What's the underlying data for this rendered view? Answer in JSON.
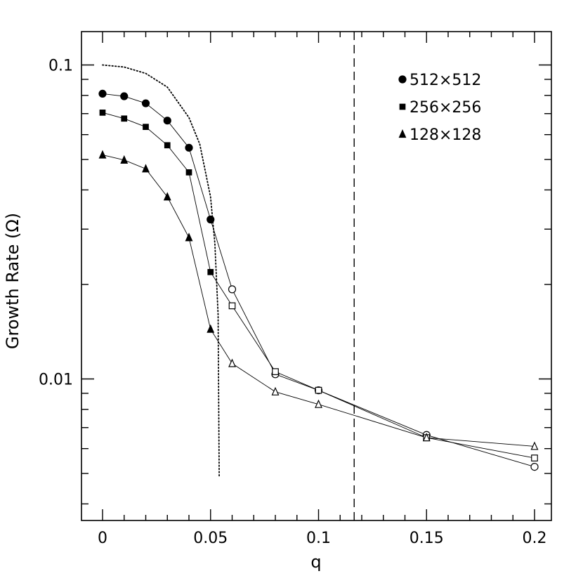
{
  "chart_data": {
    "type": "scatter",
    "title": "",
    "xlabel": "q",
    "ylabel": "Growth Rate (Ω)",
    "xlim": [
      -0.01,
      0.207
    ],
    "ylim": [
      0.0049,
      0.14
    ],
    "yscale": "log",
    "grid": false,
    "legend_position": "top-right",
    "x_ticks": [
      {
        "value": 0,
        "label": "0"
      },
      {
        "value": 0.05,
        "label": "0.05"
      },
      {
        "value": 0.1,
        "label": "0.1"
      },
      {
        "value": 0.15,
        "label": "0.15"
      },
      {
        "value": 0.2,
        "label": "0.2"
      }
    ],
    "y_ticks": [
      {
        "value": 0.1,
        "label": "0.1"
      },
      {
        "value": 0.01,
        "label": "0.01"
      }
    ],
    "series": [
      {
        "name": "512×512",
        "marker": "circle",
        "points": [
          {
            "x": 0,
            "y": 0.081,
            "filled": true
          },
          {
            "x": 0.01,
            "y": 0.0795,
            "filled": true
          },
          {
            "x": 0.02,
            "y": 0.0755,
            "filled": true
          },
          {
            "x": 0.03,
            "y": 0.0665,
            "filled": true
          },
          {
            "x": 0.04,
            "y": 0.0545,
            "filled": true
          },
          {
            "x": 0.05,
            "y": 0.0322,
            "filled": true
          },
          {
            "x": 0.06,
            "y": 0.0193,
            "filled": false
          },
          {
            "x": 0.08,
            "y": 0.01035,
            "filled": false
          },
          {
            "x": 0.1,
            "y": 0.0092,
            "filled": false
          },
          {
            "x": 0.15,
            "y": 0.00663,
            "filled": false
          },
          {
            "x": 0.2,
            "y": 0.00525,
            "filled": false
          }
        ]
      },
      {
        "name": "256×256",
        "marker": "square",
        "points": [
          {
            "x": 0,
            "y": 0.0705,
            "filled": true
          },
          {
            "x": 0.01,
            "y": 0.0675,
            "filled": true
          },
          {
            "x": 0.02,
            "y": 0.0635,
            "filled": true
          },
          {
            "x": 0.03,
            "y": 0.0555,
            "filled": true
          },
          {
            "x": 0.04,
            "y": 0.0455,
            "filled": true
          },
          {
            "x": 0.05,
            "y": 0.0219,
            "filled": true
          },
          {
            "x": 0.06,
            "y": 0.0171,
            "filled": false
          },
          {
            "x": 0.08,
            "y": 0.01055,
            "filled": false
          },
          {
            "x": 0.1,
            "y": 0.0092,
            "filled": false
          },
          {
            "x": 0.15,
            "y": 0.0065,
            "filled": false
          },
          {
            "x": 0.2,
            "y": 0.0056,
            "filled": false
          }
        ]
      },
      {
        "name": "128×128",
        "marker": "triangle",
        "points": [
          {
            "x": 0,
            "y": 0.0517,
            "filled": true
          },
          {
            "x": 0.01,
            "y": 0.0498,
            "filled": true
          },
          {
            "x": 0.02,
            "y": 0.0467,
            "filled": true
          },
          {
            "x": 0.03,
            "y": 0.038,
            "filled": true
          },
          {
            "x": 0.04,
            "y": 0.0282,
            "filled": true
          },
          {
            "x": 0.05,
            "y": 0.0144,
            "filled": true
          },
          {
            "x": 0.06,
            "y": 0.0112,
            "filled": false
          },
          {
            "x": 0.08,
            "y": 0.0091,
            "filled": false
          },
          {
            "x": 0.1,
            "y": 0.0083,
            "filled": false
          },
          {
            "x": 0.15,
            "y": 0.0065,
            "filled": false
          },
          {
            "x": 0.2,
            "y": 0.0061,
            "filled": false
          }
        ]
      }
    ],
    "reference_curves": [
      {
        "style": "dotted",
        "points": [
          {
            "x": 0,
            "y": 0.1
          },
          {
            "x": 0.01,
            "y": 0.0985
          },
          {
            "x": 0.02,
            "y": 0.094
          },
          {
            "x": 0.03,
            "y": 0.085
          },
          {
            "x": 0.04,
            "y": 0.068
          },
          {
            "x": 0.045,
            "y": 0.056
          },
          {
            "x": 0.05,
            "y": 0.038
          },
          {
            "x": 0.052,
            "y": 0.027
          },
          {
            "x": 0.0535,
            "y": 0.016
          },
          {
            "x": 0.054,
            "y": 0.0049
          }
        ]
      }
    ],
    "reference_lines": [
      {
        "orientation": "vertical",
        "style": "dashed",
        "x": 0.1165
      }
    ]
  }
}
